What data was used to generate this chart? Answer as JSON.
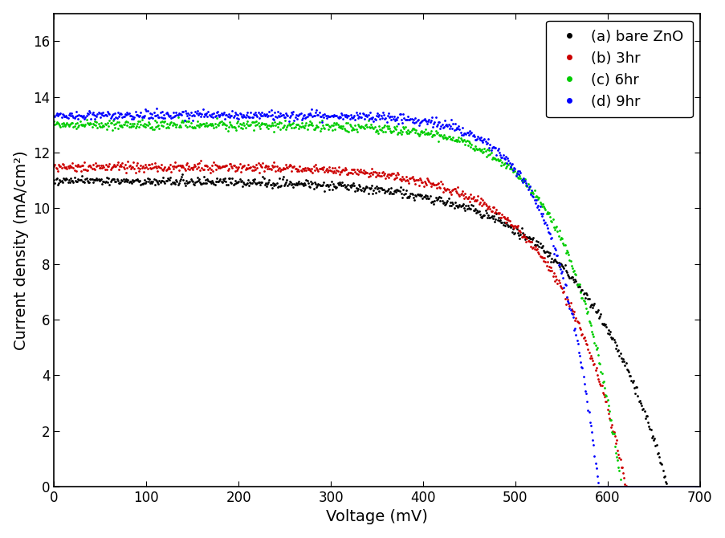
{
  "title": "",
  "xlabel": "Voltage (mV)",
  "ylabel": "Current density (mA/cm²)",
  "xlim": [
    0,
    700
  ],
  "ylim": [
    0,
    17
  ],
  "xticks": [
    0,
    100,
    200,
    300,
    400,
    500,
    600,
    700
  ],
  "yticks": [
    0,
    2,
    4,
    6,
    8,
    10,
    12,
    14,
    16
  ],
  "series": [
    {
      "label": "(a) bare ZnO",
      "color": "#000000",
      "Jsc": 11.0,
      "Voc": 665,
      "n": 3.5
    },
    {
      "label": "(b) 3hr",
      "color": "#cc0000",
      "Jsc": 11.5,
      "Voc": 620,
      "n": 2.8
    },
    {
      "label": "(c) 6hr",
      "color": "#00cc00",
      "Jsc": 13.0,
      "Voc": 615,
      "n": 2.2
    },
    {
      "label": "(d) 9hr",
      "color": "#0000ff",
      "Jsc": 13.35,
      "Voc": 590,
      "n": 1.8
    }
  ],
  "legend_loc": "upper right",
  "marker": ".",
  "markersize": 2,
  "linewidth": 0,
  "figsize": [
    9.04,
    6.7
  ],
  "dpi": 100,
  "background_color": "#ffffff",
  "noise_seed": 42
}
